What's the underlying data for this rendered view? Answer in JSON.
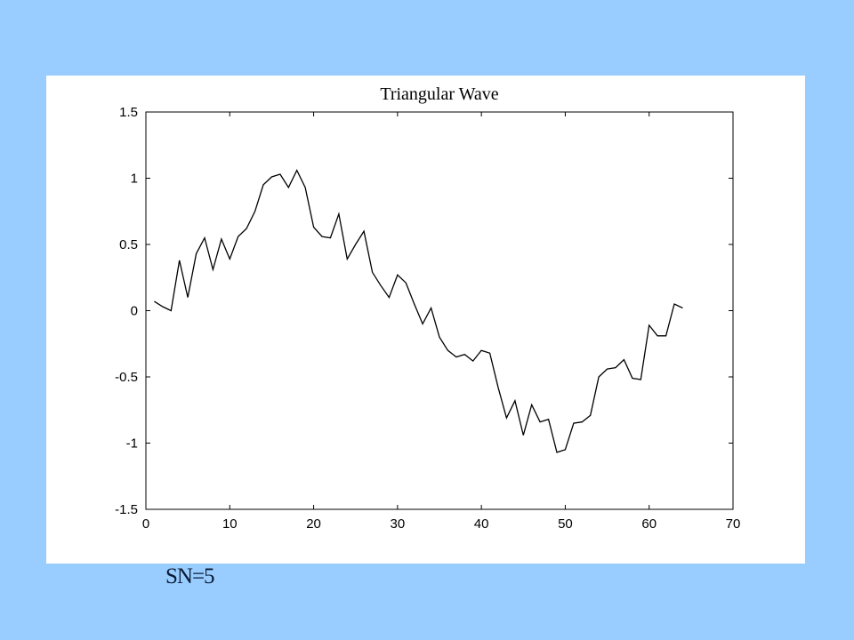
{
  "page": {
    "background_color": "#99CCFF",
    "panel_color": "#FFFFFF",
    "caption": "SN=5"
  },
  "chart_data": {
    "type": "line",
    "title": "Triangular Wave",
    "xlabel": "",
    "ylabel": "",
    "xlim": [
      0,
      70
    ],
    "ylim": [
      -1.5,
      1.5
    ],
    "x_ticks": [
      0,
      10,
      20,
      30,
      40,
      50,
      60,
      70
    ],
    "x_tick_labels": [
      "0",
      "10",
      "20",
      "30",
      "40",
      "50",
      "60",
      "70"
    ],
    "y_ticks": [
      1.5,
      1,
      0.5,
      0,
      -0.5,
      -1,
      -1.5
    ],
    "y_tick_labels": [
      "1.5",
      "1",
      "0.5",
      "0",
      "-0.5",
      "-1",
      "-1.5"
    ],
    "grid": false,
    "legend": "none",
    "line_color": "#000000",
    "series": [
      {
        "x": [
          1,
          2,
          3,
          4,
          5,
          6,
          7,
          8,
          9,
          10,
          11,
          12,
          13,
          14,
          15,
          16,
          17,
          18,
          19,
          20,
          21,
          22,
          23,
          24,
          25,
          26,
          27,
          28,
          29,
          30,
          31,
          32,
          33,
          34,
          35,
          36,
          37,
          38,
          39,
          40,
          41,
          42,
          43,
          44,
          45,
          46,
          47,
          48,
          49,
          50,
          51,
          52,
          53,
          54,
          55,
          56,
          57,
          58,
          59,
          60,
          61,
          62,
          63,
          64
        ],
        "y": [
          0.07,
          0.03,
          0.0,
          0.38,
          0.1,
          0.43,
          0.55,
          0.31,
          0.54,
          0.39,
          0.56,
          0.62,
          0.75,
          0.95,
          1.01,
          1.03,
          0.93,
          1.06,
          0.93,
          0.63,
          0.56,
          0.55,
          0.73,
          0.39,
          0.5,
          0.6,
          0.29,
          0.19,
          0.1,
          0.27,
          0.21,
          0.05,
          -0.1,
          0.02,
          -0.2,
          -0.3,
          -0.35,
          -0.33,
          -0.38,
          -0.3,
          -0.32,
          -0.58,
          -0.81,
          -0.68,
          -0.94,
          -0.71,
          -0.84,
          -0.82,
          -1.07,
          -1.05,
          -0.85,
          -0.84,
          -0.79,
          -0.5,
          -0.44,
          -0.43,
          -0.37,
          -0.51,
          -0.52,
          -0.11,
          -0.19,
          -0.19,
          0.05,
          0.02
        ]
      }
    ]
  }
}
